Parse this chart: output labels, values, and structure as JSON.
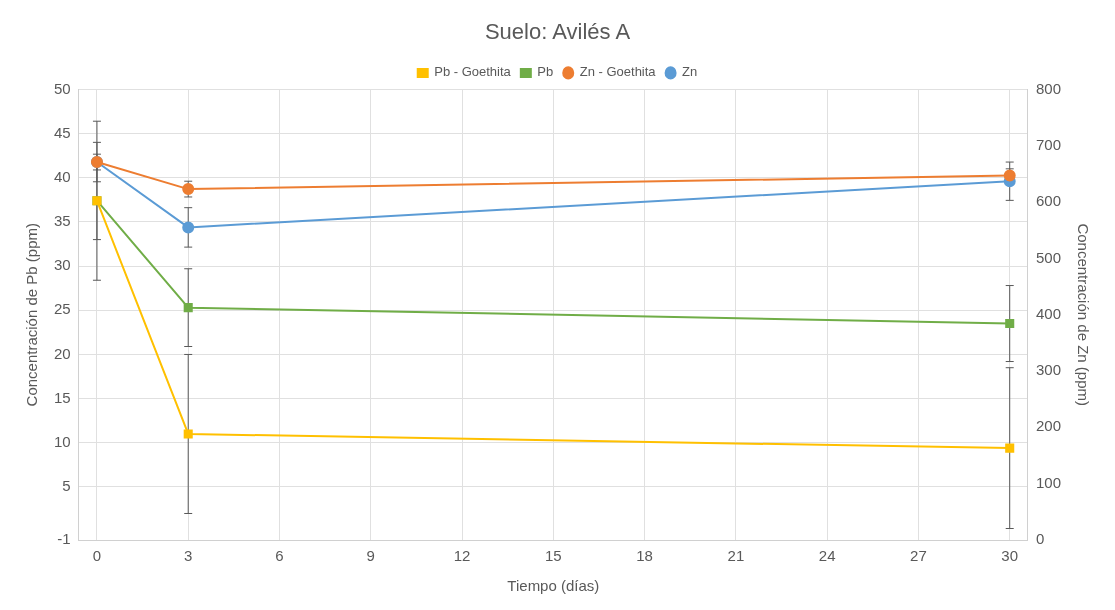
{
  "chart_data": {
    "type": "line",
    "title": "Suelo: Avilés A",
    "xlabel": "Tiempo (días)",
    "ylabel": "Concentración de Pb (ppm)",
    "y2label": "Concentración de Zn (ppm)",
    "x": [
      0,
      3,
      30
    ],
    "xlim": [
      -0.6,
      30.6
    ],
    "xticks": [
      0,
      3,
      6,
      9,
      12,
      15,
      18,
      21,
      24,
      27,
      30
    ],
    "ylim": [
      -1,
      50
    ],
    "yticks": [
      -1,
      5,
      10,
      15,
      20,
      25,
      30,
      35,
      40,
      45,
      50
    ],
    "y2lim": [
      0,
      800
    ],
    "y2ticks": [
      0,
      100,
      200,
      300,
      400,
      500,
      600,
      700,
      800
    ],
    "grid": true,
    "legend": "top",
    "line_style": "solid",
    "series": [
      {
        "name": "Pb - Goethita",
        "color": "#ffc000",
        "marker": "square",
        "values": [
          37.4,
          11.0,
          9.4
        ],
        "errors": [
          9.0,
          9.0,
          9.1
        ]
      },
      {
        "name": "Pb",
        "color": "#70ad47",
        "marker": "square",
        "values": [
          37.4,
          25.3,
          23.5
        ],
        "errors": [
          4.4,
          4.4,
          4.3
        ]
      },
      {
        "name": "Zn - Goethita",
        "color": "#ed7d31",
        "marker": "circle",
        "axis": "y2",
        "values": [
          671,
          623,
          647
        ],
        "errors": [
          14,
          14,
          12
        ]
      },
      {
        "name": "Zn",
        "color": "#5b9bd5",
        "marker": "circle",
        "axis": "y2",
        "values": [
          671,
          555,
          637
        ],
        "errors": [
          35,
          35,
          34
        ]
      }
    ]
  }
}
